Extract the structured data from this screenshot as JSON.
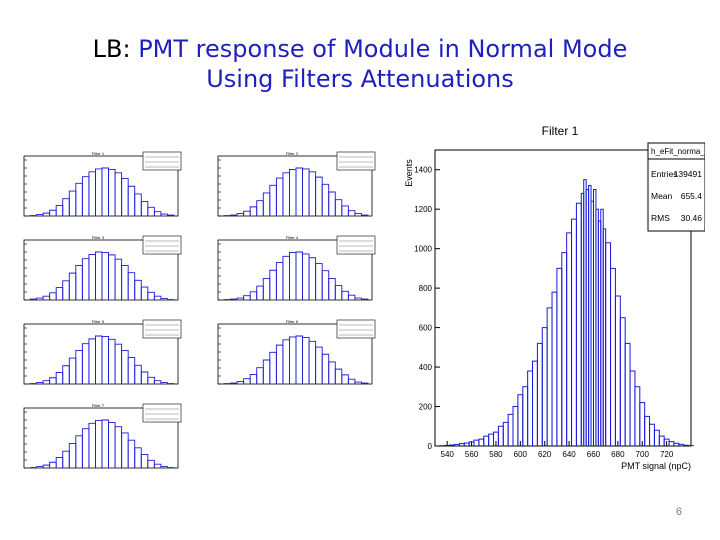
{
  "slide": {
    "title_prefix": "LB:",
    "title_line1": "PMT response of Module in Normal Mode",
    "title_line2": "Using Filters Attenuations",
    "page_number": "6"
  },
  "colors": {
    "title": "#1f1fbf",
    "histogram": "#1a1adb",
    "axis": "#000000"
  },
  "chart_data": [
    {
      "type": "bar",
      "title": "Filter 1",
      "xlabel": "PMT signal (npC)",
      "ylabel": "Events",
      "xlim": [
        530,
        740
      ],
      "ylim": [
        0,
        1500
      ],
      "x_ticks": [
        "540",
        "560",
        "580",
        "600",
        "620",
        "640",
        "660",
        "680",
        "700",
        "720"
      ],
      "y_ticks": [
        "0",
        "200",
        "400",
        "600",
        "800",
        "1000",
        "1200",
        "1400"
      ],
      "legend_position": "top-right",
      "stats_box": {
        "name": "h_eFit_norma__0",
        "rows": [
          {
            "label": "Entries",
            "value": "139491"
          },
          {
            "label": "Mean",
            "value": "655.4"
          },
          {
            "label": "RMS",
            "value": "30.46"
          }
        ]
      },
      "bins": [
        [
          534,
          2
        ],
        [
          538,
          3
        ],
        [
          542,
          5
        ],
        [
          546,
          8
        ],
        [
          550,
          12
        ],
        [
          554,
          15
        ],
        [
          558,
          20
        ],
        [
          562,
          30
        ],
        [
          566,
          35
        ],
        [
          570,
          50
        ],
        [
          574,
          60
        ],
        [
          578,
          70
        ],
        [
          582,
          100
        ],
        [
          586,
          120
        ],
        [
          590,
          160
        ],
        [
          594,
          200
        ],
        [
          598,
          260
        ],
        [
          602,
          300
        ],
        [
          606,
          380
        ],
        [
          610,
          430
        ],
        [
          614,
          520
        ],
        [
          618,
          600
        ],
        [
          622,
          700
        ],
        [
          626,
          780
        ],
        [
          630,
          900
        ],
        [
          634,
          980
        ],
        [
          638,
          1080
        ],
        [
          642,
          1150
        ],
        [
          646,
          1230
        ],
        [
          650,
          1280
        ],
        [
          652,
          1350
        ],
        [
          654,
          1300
        ],
        [
          656,
          1320
        ],
        [
          658,
          1240
        ],
        [
          660,
          1300
        ],
        [
          662,
          1200
        ],
        [
          664,
          1140
        ],
        [
          666,
          1200
        ],
        [
          668,
          1100
        ],
        [
          670,
          1030
        ],
        [
          674,
          900
        ],
        [
          678,
          760
        ],
        [
          682,
          650
        ],
        [
          686,
          520
        ],
        [
          690,
          380
        ],
        [
          694,
          300
        ],
        [
          698,
          220
        ],
        [
          702,
          150
        ],
        [
          706,
          110
        ],
        [
          710,
          80
        ],
        [
          714,
          50
        ],
        [
          718,
          35
        ],
        [
          722,
          22
        ],
        [
          726,
          14
        ],
        [
          730,
          8
        ],
        [
          734,
          4
        ],
        [
          738,
          2
        ]
      ]
    },
    {
      "type": "bar",
      "title": "Filter 1",
      "note": "small thumbnail histogram, labels illegible",
      "bins": [
        [
          0,
          1
        ],
        [
          1,
          3
        ],
        [
          2,
          6
        ],
        [
          3,
          12
        ],
        [
          4,
          22
        ],
        [
          5,
          36
        ],
        [
          6,
          52
        ],
        [
          7,
          68
        ],
        [
          8,
          82
        ],
        [
          9,
          92
        ],
        [
          10,
          98
        ],
        [
          11,
          100
        ],
        [
          12,
          97
        ],
        [
          13,
          90
        ],
        [
          14,
          78
        ],
        [
          15,
          62
        ],
        [
          16,
          46
        ],
        [
          17,
          30
        ],
        [
          18,
          18
        ],
        [
          19,
          9
        ],
        [
          20,
          4
        ],
        [
          21,
          2
        ]
      ]
    },
    {
      "type": "bar",
      "title": "Filter 2",
      "bins": [
        [
          0,
          1
        ],
        [
          1,
          2
        ],
        [
          2,
          5
        ],
        [
          3,
          10
        ],
        [
          4,
          19
        ],
        [
          5,
          32
        ],
        [
          6,
          48
        ],
        [
          7,
          64
        ],
        [
          8,
          79
        ],
        [
          9,
          90
        ],
        [
          10,
          97
        ],
        [
          11,
          100
        ],
        [
          12,
          98
        ],
        [
          13,
          92
        ],
        [
          14,
          81
        ],
        [
          15,
          66
        ],
        [
          16,
          50
        ],
        [
          17,
          34
        ],
        [
          18,
          21
        ],
        [
          19,
          11
        ],
        [
          20,
          5
        ],
        [
          21,
          2
        ]
      ]
    },
    {
      "type": "bar",
      "title": "Filter 3",
      "bins": [
        [
          0,
          2
        ],
        [
          1,
          4
        ],
        [
          2,
          8
        ],
        [
          3,
          15
        ],
        [
          4,
          26
        ],
        [
          5,
          40
        ],
        [
          6,
          56
        ],
        [
          7,
          72
        ],
        [
          8,
          86
        ],
        [
          9,
          95
        ],
        [
          10,
          100
        ],
        [
          11,
          99
        ],
        [
          12,
          94
        ],
        [
          13,
          85
        ],
        [
          14,
          72
        ],
        [
          15,
          57
        ],
        [
          16,
          41
        ],
        [
          17,
          27
        ],
        [
          18,
          16
        ],
        [
          19,
          8
        ],
        [
          20,
          3
        ],
        [
          21,
          1
        ]
      ]
    },
    {
      "type": "bar",
      "title": "Filter 4",
      "bins": [
        [
          0,
          1
        ],
        [
          1,
          2
        ],
        [
          2,
          4
        ],
        [
          3,
          9
        ],
        [
          4,
          17
        ],
        [
          5,
          29
        ],
        [
          6,
          45
        ],
        [
          7,
          62
        ],
        [
          8,
          78
        ],
        [
          9,
          91
        ],
        [
          10,
          99
        ],
        [
          11,
          100
        ],
        [
          12,
          96
        ],
        [
          13,
          88
        ],
        [
          14,
          76
        ],
        [
          15,
          61
        ],
        [
          16,
          45
        ],
        [
          17,
          30
        ],
        [
          18,
          18
        ],
        [
          19,
          10
        ],
        [
          20,
          4
        ],
        [
          21,
          2
        ]
      ]
    },
    {
      "type": "bar",
      "title": "Filter 5",
      "bins": [
        [
          0,
          1
        ],
        [
          1,
          3
        ],
        [
          2,
          7
        ],
        [
          3,
          13
        ],
        [
          4,
          24
        ],
        [
          5,
          38
        ],
        [
          6,
          54
        ],
        [
          7,
          70
        ],
        [
          8,
          84
        ],
        [
          9,
          94
        ],
        [
          10,
          100
        ],
        [
          11,
          99
        ],
        [
          12,
          93
        ],
        [
          13,
          83
        ],
        [
          14,
          70
        ],
        [
          15,
          55
        ],
        [
          16,
          39
        ],
        [
          17,
          25
        ],
        [
          18,
          14
        ],
        [
          19,
          7
        ],
        [
          20,
          3
        ],
        [
          21,
          1
        ]
      ]
    },
    {
      "type": "bar",
      "title": "Filter 6",
      "bins": [
        [
          0,
          1
        ],
        [
          1,
          2
        ],
        [
          2,
          5
        ],
        [
          3,
          11
        ],
        [
          4,
          20
        ],
        [
          5,
          34
        ],
        [
          6,
          50
        ],
        [
          7,
          66
        ],
        [
          8,
          81
        ],
        [
          9,
          92
        ],
        [
          10,
          98
        ],
        [
          11,
          100
        ],
        [
          12,
          97
        ],
        [
          13,
          89
        ],
        [
          14,
          77
        ],
        [
          15,
          62
        ],
        [
          16,
          46
        ],
        [
          17,
          31
        ],
        [
          18,
          19
        ],
        [
          19,
          10
        ],
        [
          20,
          4
        ],
        [
          21,
          2
        ]
      ]
    },
    {
      "type": "bar",
      "title": "Filter 7",
      "bins": [
        [
          0,
          1
        ],
        [
          1,
          3
        ],
        [
          2,
          6
        ],
        [
          3,
          12
        ],
        [
          4,
          22
        ],
        [
          5,
          35
        ],
        [
          6,
          51
        ],
        [
          7,
          67
        ],
        [
          8,
          82
        ],
        [
          9,
          93
        ],
        [
          10,
          99
        ],
        [
          11,
          100
        ],
        [
          12,
          95
        ],
        [
          13,
          86
        ],
        [
          14,
          73
        ],
        [
          15,
          58
        ],
        [
          16,
          42
        ],
        [
          17,
          28
        ],
        [
          18,
          16
        ],
        [
          19,
          8
        ],
        [
          20,
          3
        ],
        [
          21,
          1
        ]
      ]
    }
  ]
}
